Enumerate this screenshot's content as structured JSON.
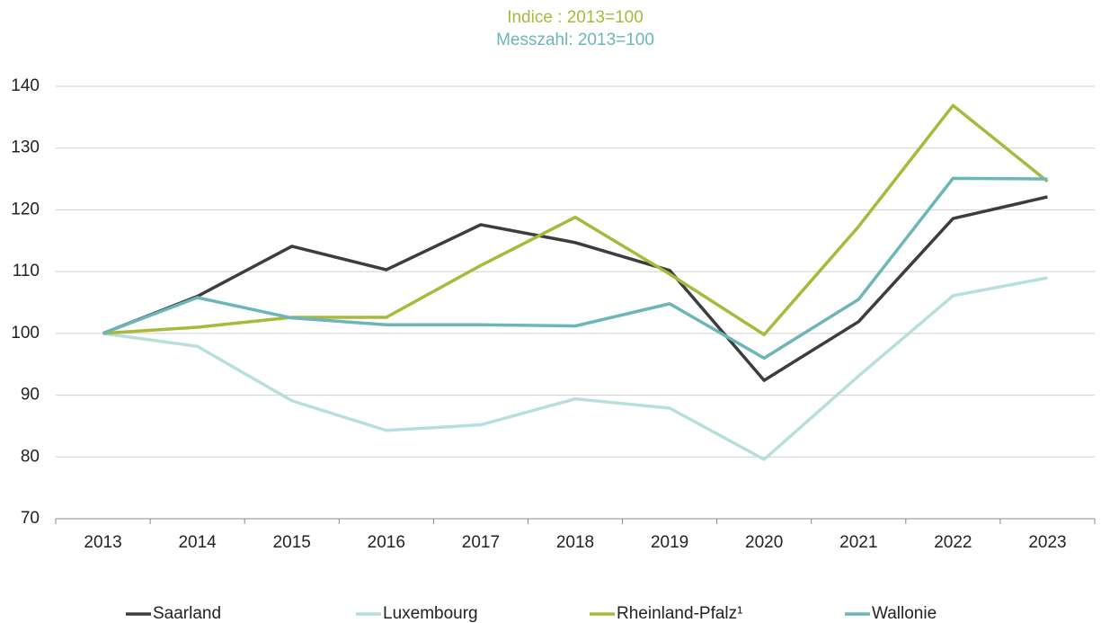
{
  "chart_data": {
    "type": "line",
    "title": "Indice : 2013=100",
    "subtitle": "Messzahl: 2013=100",
    "categories": [
      "2013",
      "2014",
      "2015",
      "2016",
      "2017",
      "2018",
      "2019",
      "2020",
      "2021",
      "2022",
      "2023"
    ],
    "series": [
      {
        "name": "Saarland",
        "color": "#3d3d3d",
        "values": [
          100,
          106,
          114.1,
          110.3,
          117.6,
          114.7,
          110.2,
          92.4,
          101.9,
          118.6,
          122.1
        ]
      },
      {
        "name": "Luxembourg",
        "color": "#b7dfde",
        "values": [
          100,
          97.9,
          89.1,
          84.3,
          85.2,
          89.4,
          87.9,
          79.6,
          93.1,
          106.1,
          109
        ]
      },
      {
        "name": "Rheinland-Pfalz¹",
        "color": "#a9b93b",
        "values": [
          100,
          101,
          102.6,
          102.6,
          111,
          118.8,
          109.6,
          99.8,
          117.3,
          136.9,
          124.6
        ]
      },
      {
        "name": "Wallonie",
        "color": "#6cb6b9",
        "values": [
          100,
          105.8,
          102.5,
          101.4,
          101.4,
          101.2,
          104.8,
          96,
          105.5,
          125.1,
          125
        ]
      }
    ],
    "ylim": [
      70,
      140
    ],
    "yticks": [
      70,
      80,
      90,
      100,
      110,
      120,
      130,
      140
    ],
    "grid": true,
    "legend": "bottom"
  }
}
